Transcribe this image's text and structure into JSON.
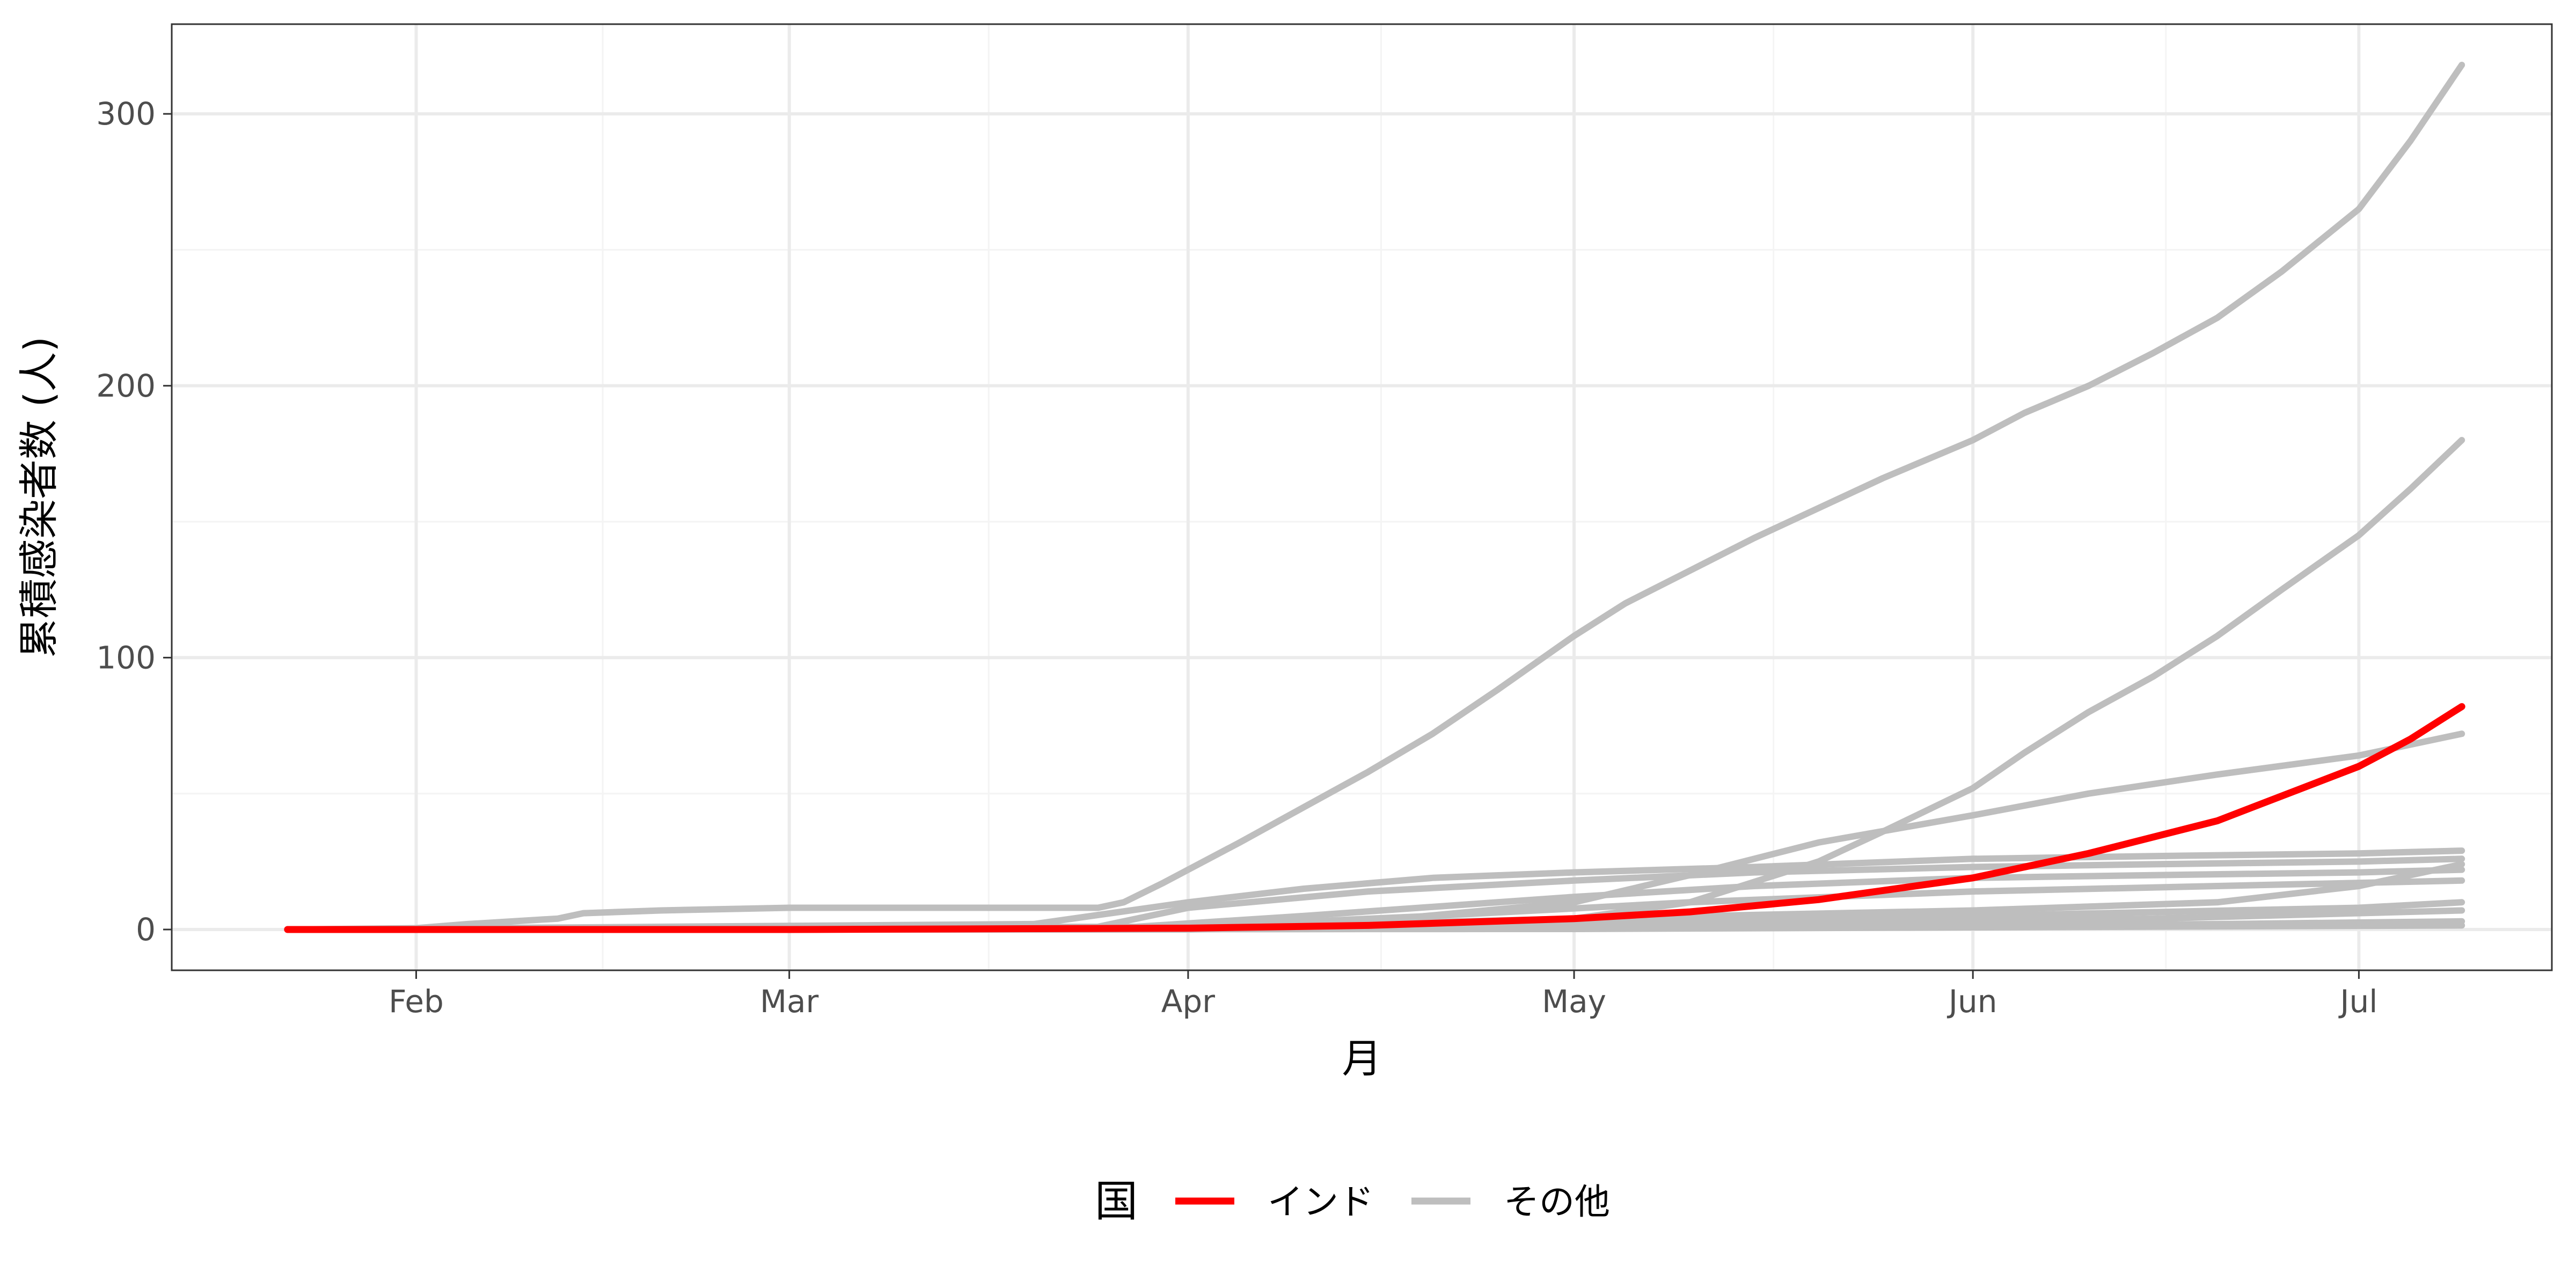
{
  "chart_data": {
    "type": "line",
    "xlabel": "月",
    "ylabel": "累積感染者数 (人)",
    "x_ticks": [
      {
        "date": "2020-02-01",
        "label": "Feb"
      },
      {
        "date": "2020-03-01",
        "label": "Mar"
      },
      {
        "date": "2020-04-01",
        "label": "Apr"
      },
      {
        "date": "2020-05-01",
        "label": "May"
      },
      {
        "date": "2020-06-01",
        "label": "Jun"
      },
      {
        "date": "2020-07-01",
        "label": "Jul"
      }
    ],
    "y_ticks": [
      0,
      100,
      200,
      300
    ],
    "xlim": [
      "2020-01-13",
      "2020-07-16"
    ],
    "ylim": [
      -15,
      333
    ],
    "grid": true,
    "legend": {
      "title": "国",
      "position": "bottom",
      "entries": [
        {
          "label": "インド",
          "color": "#ff0000"
        },
        {
          "label": "その他",
          "color": "#bebebe"
        }
      ]
    },
    "series": [
      {
        "group": "その他",
        "color": "#bebebe",
        "points": [
          [
            "2020-01-22",
            0
          ],
          [
            "2020-02-01",
            0.5
          ],
          [
            "2020-02-05",
            2
          ],
          [
            "2020-02-12",
            4
          ],
          [
            "2020-02-14",
            6
          ],
          [
            "2020-02-20",
            7
          ],
          [
            "2020-03-01",
            8
          ],
          [
            "2020-03-15",
            8
          ],
          [
            "2020-03-25",
            8
          ],
          [
            "2020-03-27",
            10
          ],
          [
            "2020-03-30",
            17
          ],
          [
            "2020-04-01",
            22
          ],
          [
            "2020-04-05",
            32
          ],
          [
            "2020-04-10",
            45
          ],
          [
            "2020-04-15",
            58
          ],
          [
            "2020-04-20",
            72
          ],
          [
            "2020-04-25",
            88
          ],
          [
            "2020-05-01",
            108
          ],
          [
            "2020-05-05",
            120
          ],
          [
            "2020-05-10",
            132
          ],
          [
            "2020-05-15",
            144
          ],
          [
            "2020-05-20",
            155
          ],
          [
            "2020-05-25",
            166
          ],
          [
            "2020-06-01",
            180
          ],
          [
            "2020-06-05",
            190
          ],
          [
            "2020-06-10",
            200
          ],
          [
            "2020-06-15",
            212
          ],
          [
            "2020-06-20",
            225
          ],
          [
            "2020-06-25",
            242
          ],
          [
            "2020-07-01",
            265
          ],
          [
            "2020-07-05",
            290
          ],
          [
            "2020-07-09",
            318
          ]
        ]
      },
      {
        "group": "その他",
        "color": "#bebebe",
        "points": [
          [
            "2020-01-22",
            0
          ],
          [
            "2020-04-01",
            0
          ],
          [
            "2020-04-15",
            1
          ],
          [
            "2020-05-01",
            4
          ],
          [
            "2020-05-10",
            10
          ],
          [
            "2020-05-20",
            25
          ],
          [
            "2020-05-25",
            36
          ],
          [
            "2020-06-01",
            52
          ],
          [
            "2020-06-05",
            65
          ],
          [
            "2020-06-10",
            80
          ],
          [
            "2020-06-15",
            93
          ],
          [
            "2020-06-20",
            108
          ],
          [
            "2020-06-25",
            125
          ],
          [
            "2020-07-01",
            145
          ],
          [
            "2020-07-05",
            162
          ],
          [
            "2020-07-09",
            180
          ]
        ]
      },
      {
        "group": "その他",
        "color": "#bebebe",
        "points": [
          [
            "2020-01-22",
            0
          ],
          [
            "2020-04-01",
            0
          ],
          [
            "2020-04-15",
            3
          ],
          [
            "2020-05-01",
            10
          ],
          [
            "2020-05-10",
            20
          ],
          [
            "2020-05-20",
            32
          ],
          [
            "2020-06-01",
            42
          ],
          [
            "2020-06-10",
            50
          ],
          [
            "2020-06-20",
            57
          ],
          [
            "2020-07-01",
            64
          ],
          [
            "2020-07-09",
            72
          ]
        ]
      },
      {
        "group": "その他",
        "color": "#bebebe",
        "points": [
          [
            "2020-01-22",
            0
          ],
          [
            "2020-03-20",
            2
          ],
          [
            "2020-04-01",
            10
          ],
          [
            "2020-04-10",
            15
          ],
          [
            "2020-04-20",
            19
          ],
          [
            "2020-05-01",
            21
          ],
          [
            "2020-05-15",
            23
          ],
          [
            "2020-06-01",
            26
          ],
          [
            "2020-06-15",
            27
          ],
          [
            "2020-07-01",
            28
          ],
          [
            "2020-07-09",
            29
          ]
        ]
      },
      {
        "group": "その他",
        "color": "#bebebe",
        "points": [
          [
            "2020-01-22",
            0
          ],
          [
            "2020-03-25",
            1
          ],
          [
            "2020-04-01",
            8
          ],
          [
            "2020-04-15",
            14
          ],
          [
            "2020-05-01",
            18
          ],
          [
            "2020-05-15",
            21
          ],
          [
            "2020-06-01",
            23
          ],
          [
            "2020-06-15",
            24
          ],
          [
            "2020-07-01",
            25
          ],
          [
            "2020-07-09",
            26
          ]
        ]
      },
      {
        "group": "その他",
        "color": "#bebebe",
        "points": [
          [
            "2020-01-22",
            0
          ],
          [
            "2020-03-28",
            1
          ],
          [
            "2020-04-10",
            5
          ],
          [
            "2020-05-01",
            12
          ],
          [
            "2020-05-15",
            16
          ],
          [
            "2020-06-01",
            19
          ],
          [
            "2020-06-15",
            20
          ],
          [
            "2020-07-01",
            21
          ],
          [
            "2020-07-09",
            22
          ]
        ]
      },
      {
        "group": "その他",
        "color": "#bebebe",
        "points": [
          [
            "2020-01-22",
            0
          ],
          [
            "2020-04-01",
            1
          ],
          [
            "2020-04-20",
            5
          ],
          [
            "2020-05-10",
            10
          ],
          [
            "2020-06-01",
            14
          ],
          [
            "2020-06-20",
            16
          ],
          [
            "2020-07-09",
            18
          ]
        ]
      },
      {
        "group": "その他",
        "color": "#bebebe",
        "points": [
          [
            "2020-01-22",
            0
          ],
          [
            "2020-04-05",
            1
          ],
          [
            "2020-05-01",
            4
          ],
          [
            "2020-06-01",
            7
          ],
          [
            "2020-06-20",
            10
          ],
          [
            "2020-07-01",
            16
          ],
          [
            "2020-07-09",
            24
          ]
        ]
      },
      {
        "group": "その他",
        "color": "#bebebe",
        "points": [
          [
            "2020-01-22",
            0
          ],
          [
            "2020-04-10",
            0.5
          ],
          [
            "2020-05-01",
            2
          ],
          [
            "2020-06-01",
            5
          ],
          [
            "2020-07-01",
            8
          ],
          [
            "2020-07-09",
            10
          ]
        ]
      },
      {
        "group": "その他",
        "color": "#bebebe",
        "points": [
          [
            "2020-01-22",
            0
          ],
          [
            "2020-04-15",
            0.3
          ],
          [
            "2020-05-15",
            2
          ],
          [
            "2020-06-15",
            4
          ],
          [
            "2020-07-09",
            7
          ]
        ]
      },
      {
        "group": "その他",
        "color": "#bebebe",
        "points": [
          [
            "2020-01-22",
            0
          ],
          [
            "2020-04-15",
            0.2
          ],
          [
            "2020-05-20",
            1
          ],
          [
            "2020-06-20",
            2
          ],
          [
            "2020-07-09",
            3
          ]
        ]
      },
      {
        "group": "その他",
        "color": "#bebebe",
        "points": [
          [
            "2020-01-22",
            0
          ],
          [
            "2020-05-01",
            0.2
          ],
          [
            "2020-06-01",
            0.8
          ],
          [
            "2020-07-09",
            1.5
          ]
        ]
      },
      {
        "group": "インド",
        "color": "#ff0000",
        "points": [
          [
            "2020-01-22",
            0
          ],
          [
            "2020-03-01",
            0
          ],
          [
            "2020-04-01",
            0.5
          ],
          [
            "2020-04-15",
            1.5
          ],
          [
            "2020-05-01",
            4
          ],
          [
            "2020-05-10",
            6.5
          ],
          [
            "2020-05-20",
            11
          ],
          [
            "2020-06-01",
            19
          ],
          [
            "2020-06-10",
            28
          ],
          [
            "2020-06-20",
            40
          ],
          [
            "2020-07-01",
            60
          ],
          [
            "2020-07-05",
            70
          ],
          [
            "2020-07-09",
            82
          ]
        ]
      }
    ]
  }
}
